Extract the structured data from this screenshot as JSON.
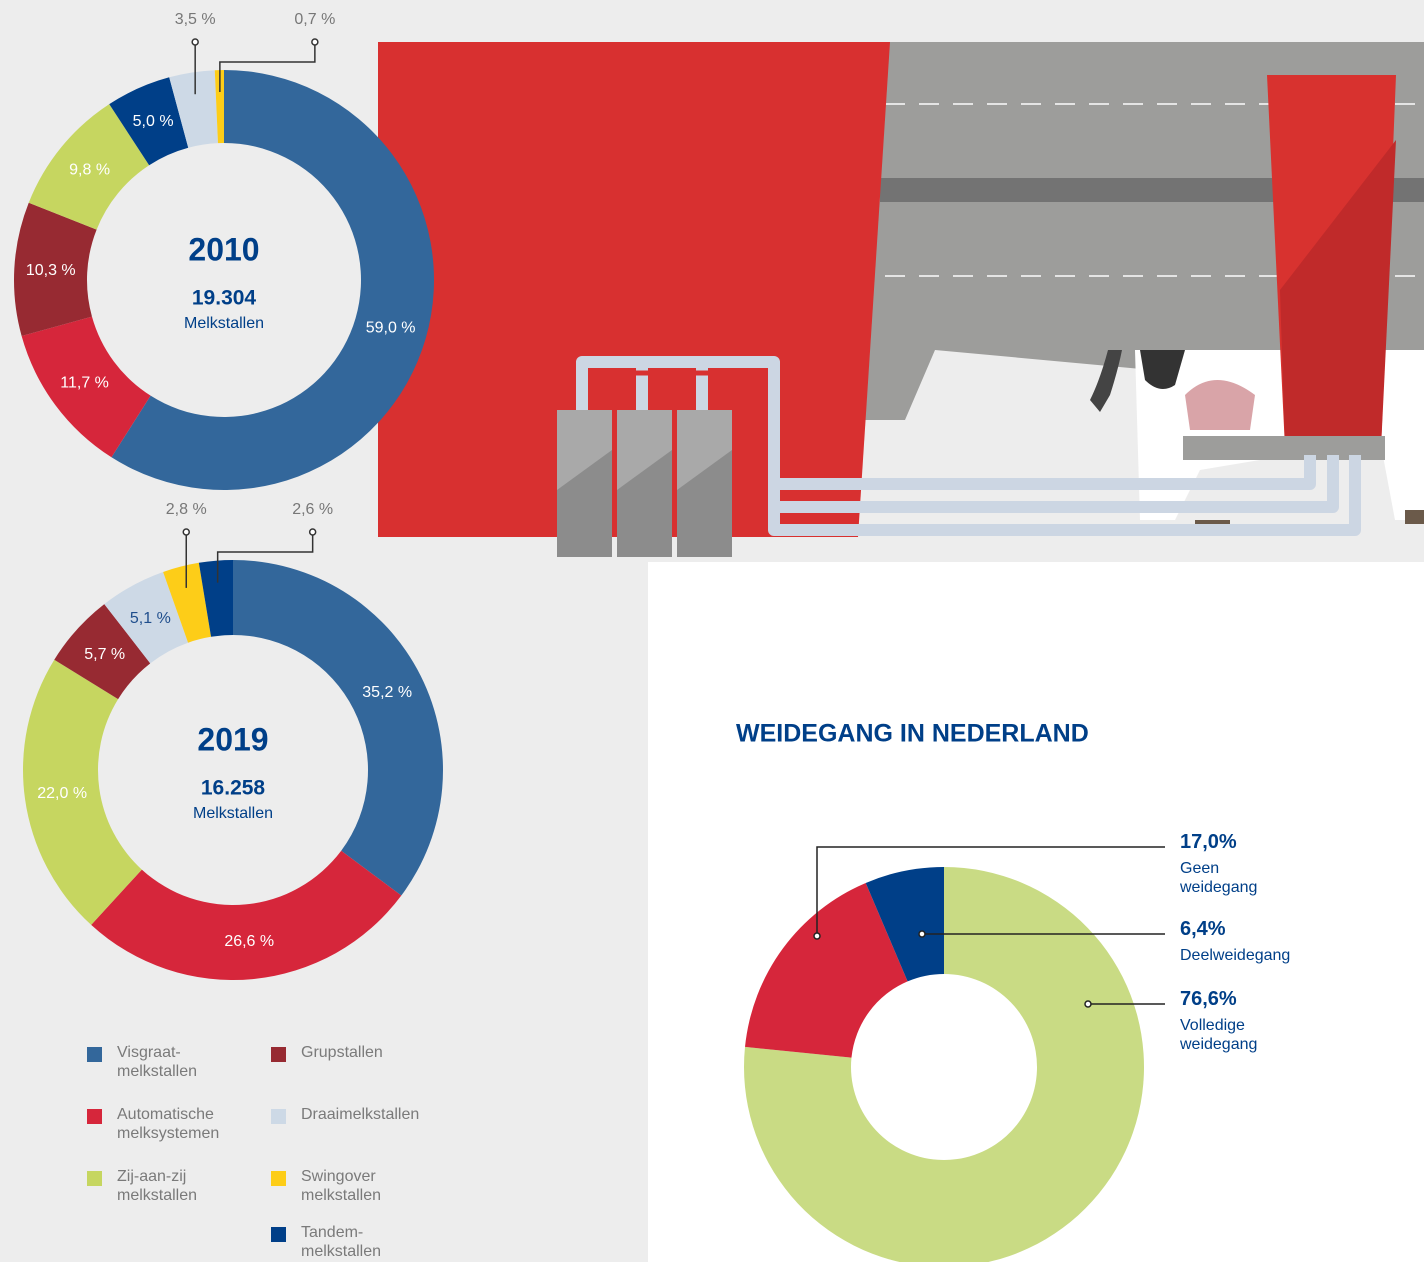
{
  "chart_data": [
    {
      "type": "pie",
      "title": "2010",
      "center_value": "19.304",
      "center_label": "Melkstallen",
      "categories": [
        "Visgraat-melkstallen",
        "Automatische melksystemen",
        "Grupstallen",
        "Zij-aan-zij melkstallen",
        "Tandem-melkstallen",
        "Draaimelkstallen",
        "Swingover melkstallen"
      ],
      "values": [
        59.0,
        11.7,
        10.3,
        9.8,
        5.0,
        3.5,
        0.7
      ],
      "value_labels": [
        "59,0 %",
        "11,7 %",
        "10,3 %",
        "9,8 %",
        "5,0 %",
        "3,5 %",
        "0,7 %"
      ],
      "colors": [
        "#33679b",
        "#d6263b",
        "#972a32",
        "#c6d660",
        "#003f88",
        "#cdd9e6",
        "#fdcd18"
      ]
    },
    {
      "type": "pie",
      "title": "2019",
      "center_value": "16.258",
      "center_label": "Melkstallen",
      "categories": [
        "Visgraat-melkstallen",
        "Automatische melksystemen",
        "Zij-aan-zij melkstallen",
        "Grupstallen",
        "Draaimelkstallen",
        "Swingover melkstallen",
        "Tandem-melkstallen"
      ],
      "values": [
        35.2,
        26.6,
        22.0,
        5.7,
        5.1,
        2.8,
        2.6
      ],
      "value_labels": [
        "35,2 %",
        "26,6 %",
        "22,0 %",
        "5,7 %",
        "5,1 %",
        "2,8 %",
        "2,6 %"
      ],
      "colors": [
        "#33679b",
        "#d6263b",
        "#c6d660",
        "#972a32",
        "#cdd9e6",
        "#fdcd18",
        "#003f88"
      ]
    },
    {
      "type": "donut",
      "title": "WEIDEGANG IN NEDERLAND",
      "categories": [
        "Volledige weidegang",
        "Geen weidegang",
        "Deelweidegang"
      ],
      "values": [
        76.6,
        17.0,
        6.4
      ],
      "value_labels": [
        "76,6%",
        "17,0%",
        "6,4%"
      ],
      "colors": [
        "#c9db84",
        "#d6263b",
        "#003f88"
      ]
    }
  ]
}
